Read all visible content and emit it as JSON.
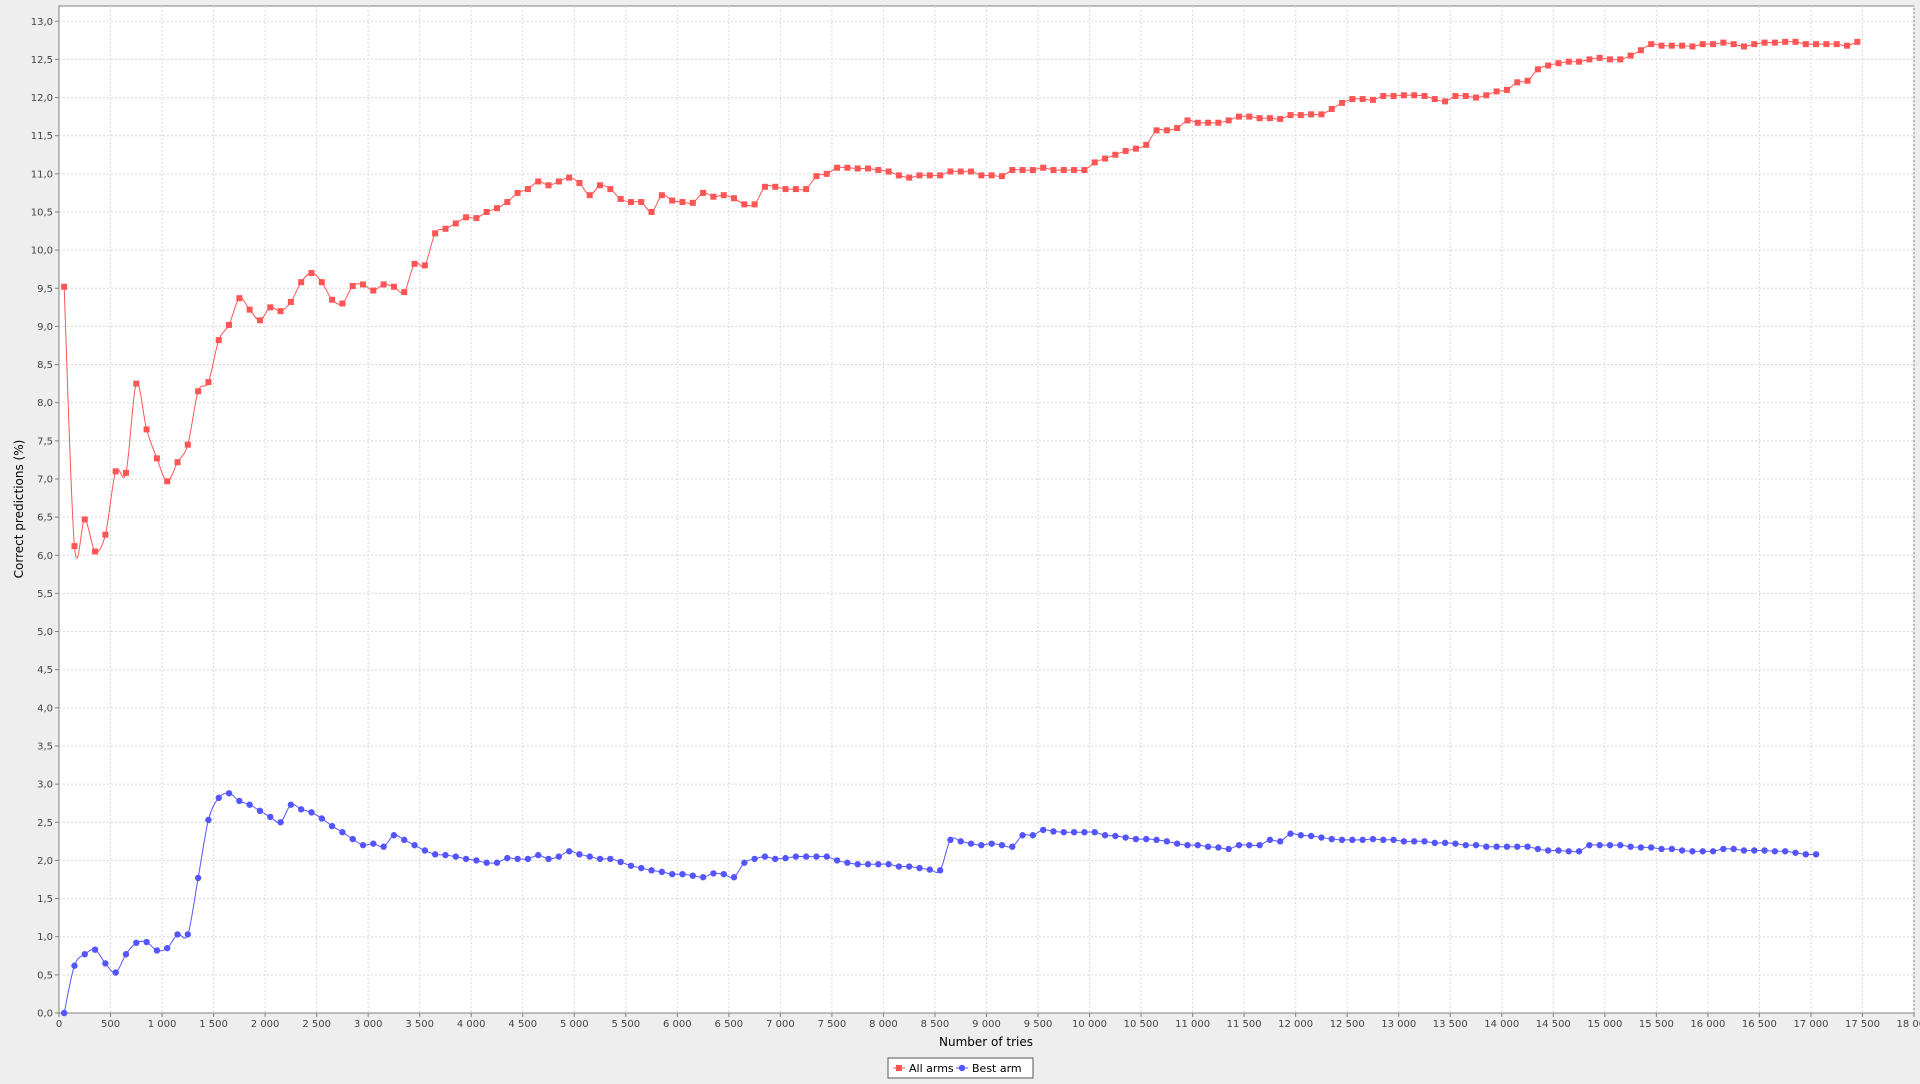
{
  "chart_data": {
    "type": "line",
    "xlabel": "Number of tries",
    "ylabel": "Correct predictions (%)",
    "xlim": [
      0,
      18000
    ],
    "ylim": [
      0,
      13.2
    ],
    "x_ticks": [
      0,
      500,
      1000,
      1500,
      2000,
      2500,
      3000,
      3500,
      4000,
      4500,
      5000,
      5500,
      6000,
      6500,
      7000,
      7500,
      8000,
      8500,
      9000,
      9500,
      10000,
      10500,
      11000,
      11500,
      12000,
      12500,
      13000,
      13500,
      14000,
      14500,
      15000,
      15500,
      16000,
      16500,
      17000,
      17500,
      18000
    ],
    "x_tick_labels": [
      "0",
      "500",
      "1 000",
      "1 500",
      "2 000",
      "2 500",
      "3 000",
      "3 500",
      "4 000",
      "4 500",
      "5 000",
      "5 500",
      "6 000",
      "6 500",
      "7 000",
      "7 500",
      "8 000",
      "8 500",
      "9 000",
      "9 500",
      "10 000",
      "10 500",
      "11 000",
      "11 500",
      "12 000",
      "12 500",
      "13 000",
      "13 500",
      "14 000",
      "14 500",
      "15 000",
      "15 500",
      "16 000",
      "16 500",
      "17 000",
      "17 500",
      "18 000"
    ],
    "y_ticks": [
      0,
      0.5,
      1,
      1.5,
      2,
      2.5,
      3,
      3.5,
      4,
      4.5,
      5,
      5.5,
      6,
      6.5,
      7,
      7.5,
      8,
      8.5,
      9,
      9.5,
      10,
      10.5,
      11,
      11.5,
      12,
      12.5,
      13
    ],
    "y_tick_labels": [
      "0,0",
      "0,5",
      "1,0",
      "1,5",
      "2,0",
      "2,5",
      "3,0",
      "3,5",
      "4,0",
      "4,5",
      "5,0",
      "5,5",
      "6,0",
      "6,5",
      "7,0",
      "7,5",
      "8,0",
      "8,5",
      "9,0",
      "9,5",
      "10,0",
      "10,5",
      "11,0",
      "11,5",
      "12,0",
      "12,5",
      "13,0"
    ],
    "grid": true,
    "legend_position": "bottom-center",
    "x_start": 50,
    "x_step": 100,
    "series": [
      {
        "name": "All arms",
        "color": "#ff5555",
        "marker": "square",
        "values": [
          9.52,
          6.12,
          6.47,
          6.05,
          6.27,
          7.1,
          7.08,
          8.25,
          7.65,
          7.27,
          6.97,
          7.22,
          7.45,
          8.15,
          8.27,
          8.82,
          9.02,
          9.37,
          9.22,
          9.08,
          9.25,
          9.2,
          9.32,
          9.58,
          9.7,
          9.58,
          9.35,
          9.3,
          9.53,
          9.55,
          9.47,
          9.55,
          9.52,
          9.45,
          9.82,
          9.8,
          10.22,
          10.28,
          10.35,
          10.43,
          10.42,
          10.5,
          10.55,
          10.63,
          10.75,
          10.8,
          10.9,
          10.85,
          10.9,
          10.95,
          10.88,
          10.72,
          10.85,
          10.8,
          10.67,
          10.63,
          10.63,
          10.5,
          10.72,
          10.65,
          10.63,
          10.62,
          10.75,
          10.7,
          10.72,
          10.68,
          10.6,
          10.6,
          10.83,
          10.83,
          10.8,
          10.8,
          10.8,
          10.97,
          11.0,
          11.08,
          11.08,
          11.07,
          11.07,
          11.05,
          11.03,
          10.98,
          10.95,
          10.98,
          10.98,
          10.98,
          11.03,
          11.03,
          11.03,
          10.98,
          10.98,
          10.97,
          11.05,
          11.05,
          11.05,
          11.08,
          11.05,
          11.05,
          11.05,
          11.05,
          11.15,
          11.2,
          11.25,
          11.3,
          11.33,
          11.38,
          11.57,
          11.57,
          11.6,
          11.7,
          11.67,
          11.67,
          11.67,
          11.7,
          11.75,
          11.75,
          11.73,
          11.73,
          11.72,
          11.77,
          11.77,
          11.78,
          11.78,
          11.85,
          11.93,
          11.98,
          11.98,
          11.97,
          12.02,
          12.02,
          12.03,
          12.03,
          12.02,
          11.98,
          11.95,
          12.02,
          12.02,
          12.0,
          12.03,
          12.08,
          12.1,
          12.2,
          12.22,
          12.37,
          12.42,
          12.45,
          12.47,
          12.47,
          12.5,
          12.52,
          12.5,
          12.5,
          12.55,
          12.62,
          12.7,
          12.68,
          12.68,
          12.68,
          12.67,
          12.7,
          12.7,
          12.72,
          12.7,
          12.67,
          12.7,
          12.72,
          12.72,
          12.73,
          12.73,
          12.7,
          12.7,
          12.7,
          12.7,
          12.68,
          12.73
        ]
      },
      {
        "name": "Best arm",
        "color": "#5555ff",
        "marker": "circle",
        "values": [
          0.0,
          0.62,
          0.77,
          0.83,
          0.65,
          0.53,
          0.77,
          0.92,
          0.93,
          0.82,
          0.85,
          1.03,
          1.03,
          1.77,
          2.53,
          2.82,
          2.88,
          2.78,
          2.73,
          2.65,
          2.57,
          2.5,
          2.73,
          2.67,
          2.63,
          2.55,
          2.45,
          2.37,
          2.28,
          2.2,
          2.22,
          2.18,
          2.33,
          2.27,
          2.2,
          2.13,
          2.08,
          2.07,
          2.05,
          2.02,
          2.0,
          1.97,
          1.97,
          2.03,
          2.02,
          2.02,
          2.07,
          2.02,
          2.05,
          2.12,
          2.08,
          2.05,
          2.02,
          2.02,
          1.98,
          1.93,
          1.9,
          1.87,
          1.85,
          1.82,
          1.82,
          1.8,
          1.78,
          1.83,
          1.82,
          1.78,
          1.97,
          2.02,
          2.05,
          2.02,
          2.03,
          2.05,
          2.05,
          2.05,
          2.05,
          2.0,
          1.97,
          1.95,
          1.95,
          1.95,
          1.95,
          1.92,
          1.92,
          1.9,
          1.88,
          1.87,
          2.27,
          2.25,
          2.22,
          2.2,
          2.22,
          2.2,
          2.18,
          2.33,
          2.33,
          2.4,
          2.38,
          2.37,
          2.37,
          2.37,
          2.37,
          2.33,
          2.32,
          2.3,
          2.28,
          2.28,
          2.27,
          2.25,
          2.22,
          2.2,
          2.2,
          2.18,
          2.17,
          2.15,
          2.2,
          2.2,
          2.2,
          2.27,
          2.25,
          2.35,
          2.33,
          2.32,
          2.3,
          2.28,
          2.27,
          2.27,
          2.27,
          2.28,
          2.27,
          2.27,
          2.25,
          2.25,
          2.25,
          2.23,
          2.23,
          2.22,
          2.2,
          2.2,
          2.18,
          2.18,
          2.18,
          2.18,
          2.18,
          2.15,
          2.13,
          2.13,
          2.12,
          2.12,
          2.2,
          2.2,
          2.2,
          2.2,
          2.18,
          2.17,
          2.17,
          2.15,
          2.15,
          2.13,
          2.12,
          2.12,
          2.12,
          2.15,
          2.15,
          2.13,
          2.13,
          2.13,
          2.12,
          2.12,
          2.1,
          2.08,
          2.08
        ]
      }
    ]
  }
}
